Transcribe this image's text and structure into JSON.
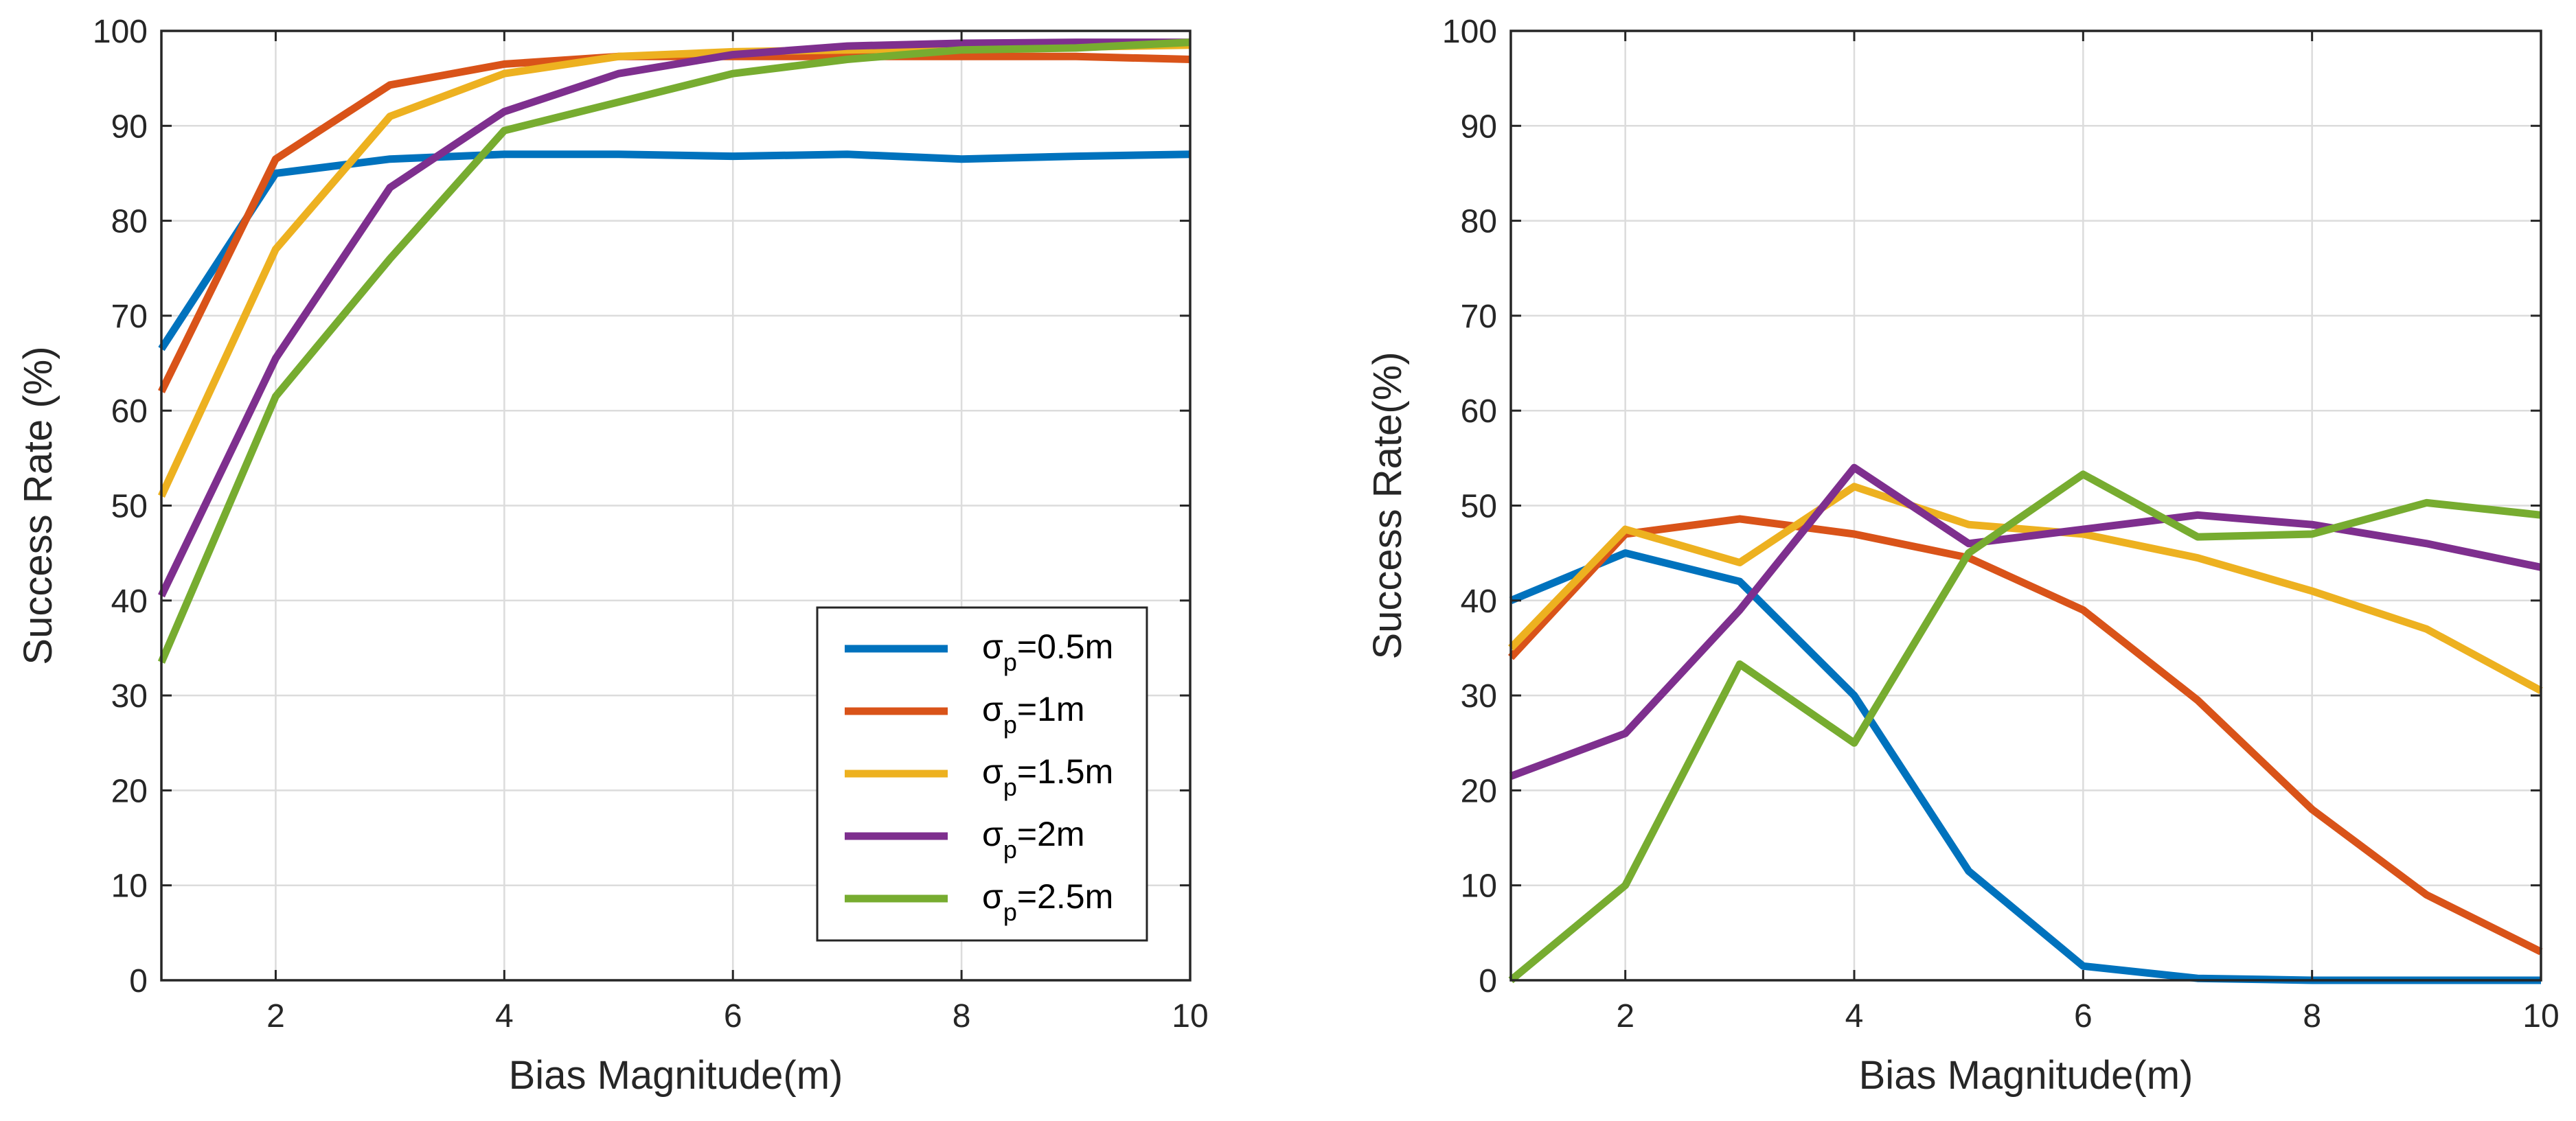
{
  "chart_data": [
    {
      "type": "line",
      "title": "",
      "xlabel": "Bias Magnitude(m)",
      "ylabel": "Success Rate (%)",
      "xlim": [
        1,
        10
      ],
      "ylim": [
        0,
        100
      ],
      "xticks": [
        "2",
        "4",
        "6",
        "8",
        "10"
      ],
      "yticks": [
        "0",
        "10",
        "20",
        "30",
        "40",
        "50",
        "60",
        "70",
        "80",
        "90",
        "100"
      ],
      "grid": true,
      "legend_position": "bottom-right",
      "x": [
        1,
        2,
        3,
        4,
        5,
        6,
        7,
        8,
        9,
        10
      ],
      "series": [
        {
          "name": "σp=0.5m",
          "label_main": "σ",
          "label_sub": "p",
          "label_rest": "=0.5m",
          "color": "#0072BD",
          "values": [
            66.5,
            85,
            86.5,
            87,
            87,
            86.8,
            87,
            86.5,
            86.8,
            87
          ]
        },
        {
          "name": "σp=1m",
          "label_main": "σ",
          "label_sub": "p",
          "label_rest": "=1m",
          "color": "#D95319",
          "values": [
            62,
            86.5,
            94.3,
            96.5,
            97.3,
            97.3,
            97.3,
            97.3,
            97.3,
            97
          ]
        },
        {
          "name": "σp=1.5m",
          "label_main": "σ",
          "label_sub": "p",
          "label_rest": "=1.5m",
          "color": "#EDB120",
          "values": [
            51,
            77,
            91,
            95.5,
            97.3,
            97.8,
            98,
            98.2,
            98.3,
            98.5
          ]
        },
        {
          "name": "σp=2m",
          "label_main": "σ",
          "label_sub": "p",
          "label_rest": "=2m",
          "color": "#7E2F8E",
          "values": [
            40.5,
            65.5,
            83.5,
            91.5,
            95.5,
            97.5,
            98.4,
            98.7,
            98.8,
            98.8
          ]
        },
        {
          "name": "σp=2.5m",
          "label_main": "σ",
          "label_sub": "p",
          "label_rest": "=2.5m",
          "color": "#77AC30",
          "values": [
            33.5,
            61.5,
            76,
            89.5,
            92.5,
            95.5,
            97,
            98,
            98.2,
            98.8
          ]
        }
      ]
    },
    {
      "type": "line",
      "title": "",
      "xlabel": "Bias Magnitude(m)",
      "ylabel": "Success Rate(%)",
      "xlim": [
        1,
        10
      ],
      "ylim": [
        0,
        100
      ],
      "xticks": [
        "2",
        "4",
        "6",
        "8",
        "10"
      ],
      "yticks": [
        "0",
        "10",
        "20",
        "30",
        "40",
        "50",
        "60",
        "70",
        "80",
        "90",
        "100"
      ],
      "grid": true,
      "x": [
        1,
        2,
        3,
        4,
        5,
        6,
        7,
        8,
        9,
        10
      ],
      "series": [
        {
          "name": "σp=0.5m",
          "color": "#0072BD",
          "values": [
            40,
            45,
            42,
            30,
            11.5,
            1.5,
            0.2,
            0,
            0,
            0
          ]
        },
        {
          "name": "σp=1m",
          "color": "#D95319",
          "values": [
            34,
            47,
            48.6,
            47,
            44.5,
            39,
            29.5,
            18,
            9,
            3
          ]
        },
        {
          "name": "σp=1.5m",
          "color": "#EDB120",
          "values": [
            35,
            47.5,
            44,
            52,
            48,
            47,
            44.5,
            41,
            37,
            30.5
          ]
        },
        {
          "name": "σp=2m",
          "color": "#7E2F8E",
          "values": [
            21.5,
            26,
            39,
            54,
            46,
            47.5,
            49,
            48,
            46,
            43.5
          ]
        },
        {
          "name": "σp=2.5m",
          "color": "#77AC30",
          "values": [
            0,
            10,
            33.3,
            25,
            45,
            53.3,
            46.7,
            47,
            50.3,
            49
          ]
        }
      ]
    }
  ]
}
